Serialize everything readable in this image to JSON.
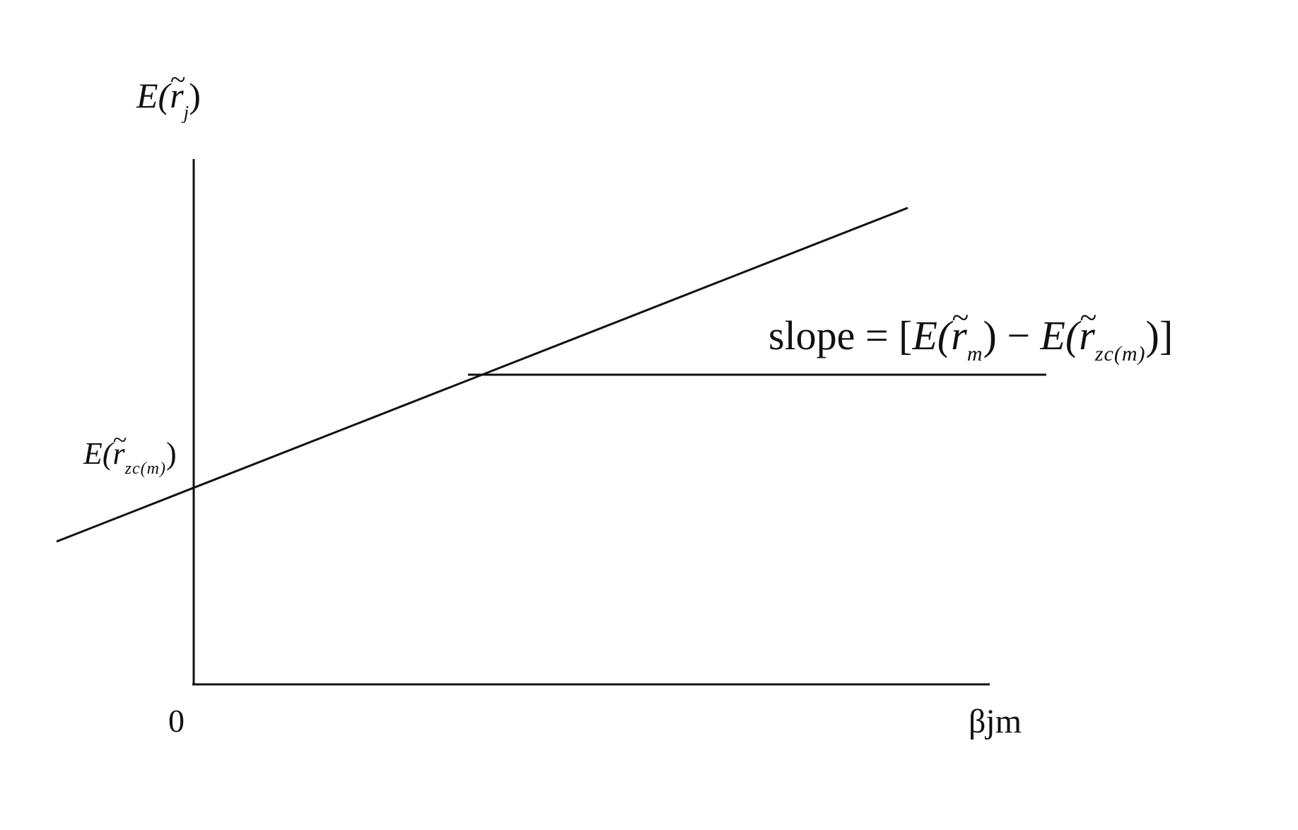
{
  "diagram": {
    "type": "security-market-line",
    "y_axis_label": {
      "base": "E(",
      "variable": "r",
      "subscript": "j",
      "close": ")"
    },
    "x_axis_label": "βjm",
    "origin_label": "0",
    "intercept_label": {
      "base": "E(",
      "variable": "r",
      "subscript": "zc(m)",
      "close": ")"
    },
    "slope_label": {
      "prefix": "slope",
      "equals": " = ",
      "open": "[",
      "term1_base": "E(",
      "term1_variable": "r",
      "term1_subscript": "m",
      "term1_close": ")",
      "minus": " − ",
      "term2_base": "E(",
      "term2_variable": "r",
      "term2_subscript": "zc(m)",
      "term2_close": ")",
      "close": "]"
    },
    "tilde": "~"
  }
}
